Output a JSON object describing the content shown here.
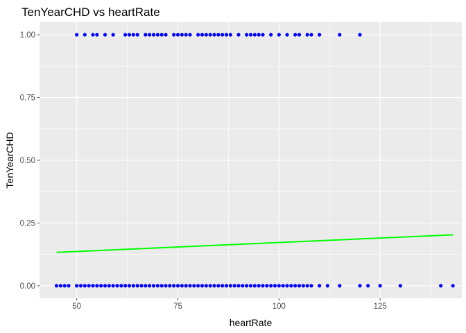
{
  "chart_data": {
    "type": "scatter",
    "title": "TenYearCHD vs heartRate",
    "xlabel": "heartRate",
    "ylabel": "TenYearCHD",
    "xlim": [
      40.8,
      145.2
    ],
    "ylim": [
      -0.05,
      1.05
    ],
    "x_ticks": [
      50,
      75,
      100,
      125
    ],
    "x_tick_labels": [
      "50",
      "75",
      "100",
      "125"
    ],
    "y_ticks": [
      0,
      0.25,
      0.5,
      0.75,
      1
    ],
    "y_tick_labels": [
      "0.00",
      "0.25",
      "0.50",
      "0.75",
      "1.00"
    ],
    "grid": true,
    "legend": "none",
    "colors": {
      "points": "#0000ff",
      "fit_line": "#00ff00",
      "panel": "#ebebeb",
      "grid": "#ffffff"
    },
    "series": [
      {
        "type": "scatter",
        "points": [
          {
            "x": 50,
            "y": 1
          },
          {
            "x": 52,
            "y": 1
          },
          {
            "x": 54,
            "y": 1
          },
          {
            "x": 55,
            "y": 1
          },
          {
            "x": 57,
            "y": 1
          },
          {
            "x": 59,
            "y": 1
          },
          {
            "x": 62,
            "y": 1
          },
          {
            "x": 63,
            "y": 1
          },
          {
            "x": 64,
            "y": 1
          },
          {
            "x": 65,
            "y": 1
          },
          {
            "x": 67,
            "y": 1
          },
          {
            "x": 68,
            "y": 1
          },
          {
            "x": 69,
            "y": 1
          },
          {
            "x": 70,
            "y": 1
          },
          {
            "x": 71,
            "y": 1
          },
          {
            "x": 72,
            "y": 1
          },
          {
            "x": 74,
            "y": 1
          },
          {
            "x": 75,
            "y": 1
          },
          {
            "x": 76,
            "y": 1
          },
          {
            "x": 77,
            "y": 1
          },
          {
            "x": 78,
            "y": 1
          },
          {
            "x": 80,
            "y": 1
          },
          {
            "x": 81,
            "y": 1
          },
          {
            "x": 82,
            "y": 1
          },
          {
            "x": 83,
            "y": 1
          },
          {
            "x": 84,
            "y": 1
          },
          {
            "x": 85,
            "y": 1
          },
          {
            "x": 86,
            "y": 1
          },
          {
            "x": 87,
            "y": 1
          },
          {
            "x": 88,
            "y": 1
          },
          {
            "x": 90,
            "y": 1
          },
          {
            "x": 92,
            "y": 1
          },
          {
            "x": 93,
            "y": 1
          },
          {
            "x": 94,
            "y": 1
          },
          {
            "x": 95,
            "y": 1
          },
          {
            "x": 96,
            "y": 1
          },
          {
            "x": 98,
            "y": 1
          },
          {
            "x": 100,
            "y": 1
          },
          {
            "x": 102,
            "y": 1
          },
          {
            "x": 104,
            "y": 1
          },
          {
            "x": 105,
            "y": 1
          },
          {
            "x": 107,
            "y": 1
          },
          {
            "x": 108,
            "y": 1
          },
          {
            "x": 110,
            "y": 1
          },
          {
            "x": 115,
            "y": 1
          },
          {
            "x": 120,
            "y": 1
          },
          {
            "x": 45,
            "y": 0
          },
          {
            "x": 46,
            "y": 0
          },
          {
            "x": 47,
            "y": 0
          },
          {
            "x": 48,
            "y": 0
          },
          {
            "x": 50,
            "y": 0
          },
          {
            "x": 51,
            "y": 0
          },
          {
            "x": 52,
            "y": 0
          },
          {
            "x": 53,
            "y": 0
          },
          {
            "x": 54,
            "y": 0
          },
          {
            "x": 55,
            "y": 0
          },
          {
            "x": 56,
            "y": 0
          },
          {
            "x": 57,
            "y": 0
          },
          {
            "x": 58,
            "y": 0
          },
          {
            "x": 59,
            "y": 0
          },
          {
            "x": 60,
            "y": 0
          },
          {
            "x": 61,
            "y": 0
          },
          {
            "x": 62,
            "y": 0
          },
          {
            "x": 63,
            "y": 0
          },
          {
            "x": 64,
            "y": 0
          },
          {
            "x": 65,
            "y": 0
          },
          {
            "x": 66,
            "y": 0
          },
          {
            "x": 67,
            "y": 0
          },
          {
            "x": 68,
            "y": 0
          },
          {
            "x": 69,
            "y": 0
          },
          {
            "x": 70,
            "y": 0
          },
          {
            "x": 71,
            "y": 0
          },
          {
            "x": 72,
            "y": 0
          },
          {
            "x": 73,
            "y": 0
          },
          {
            "x": 74,
            "y": 0
          },
          {
            "x": 75,
            "y": 0
          },
          {
            "x": 76,
            "y": 0
          },
          {
            "x": 77,
            "y": 0
          },
          {
            "x": 78,
            "y": 0
          },
          {
            "x": 79,
            "y": 0
          },
          {
            "x": 80,
            "y": 0
          },
          {
            "x": 81,
            "y": 0
          },
          {
            "x": 82,
            "y": 0
          },
          {
            "x": 83,
            "y": 0
          },
          {
            "x": 84,
            "y": 0
          },
          {
            "x": 85,
            "y": 0
          },
          {
            "x": 86,
            "y": 0
          },
          {
            "x": 87,
            "y": 0
          },
          {
            "x": 88,
            "y": 0
          },
          {
            "x": 89,
            "y": 0
          },
          {
            "x": 90,
            "y": 0
          },
          {
            "x": 91,
            "y": 0
          },
          {
            "x": 92,
            "y": 0
          },
          {
            "x": 93,
            "y": 0
          },
          {
            "x": 94,
            "y": 0
          },
          {
            "x": 95,
            "y": 0
          },
          {
            "x": 96,
            "y": 0
          },
          {
            "x": 97,
            "y": 0
          },
          {
            "x": 98,
            "y": 0
          },
          {
            "x": 99,
            "y": 0
          },
          {
            "x": 100,
            "y": 0
          },
          {
            "x": 101,
            "y": 0
          },
          {
            "x": 102,
            "y": 0
          },
          {
            "x": 103,
            "y": 0
          },
          {
            "x": 104,
            "y": 0
          },
          {
            "x": 105,
            "y": 0
          },
          {
            "x": 106,
            "y": 0
          },
          {
            "x": 107,
            "y": 0
          },
          {
            "x": 108,
            "y": 0
          },
          {
            "x": 110,
            "y": 0
          },
          {
            "x": 112,
            "y": 0
          },
          {
            "x": 115,
            "y": 0
          },
          {
            "x": 120,
            "y": 0
          },
          {
            "x": 122,
            "y": 0
          },
          {
            "x": 125,
            "y": 0
          },
          {
            "x": 130,
            "y": 0
          },
          {
            "x": 140,
            "y": 0
          },
          {
            "x": 143,
            "y": 0
          }
        ]
      },
      {
        "type": "line",
        "x": [
          45,
          143
        ],
        "y": [
          0.133,
          0.203
        ]
      }
    ]
  }
}
